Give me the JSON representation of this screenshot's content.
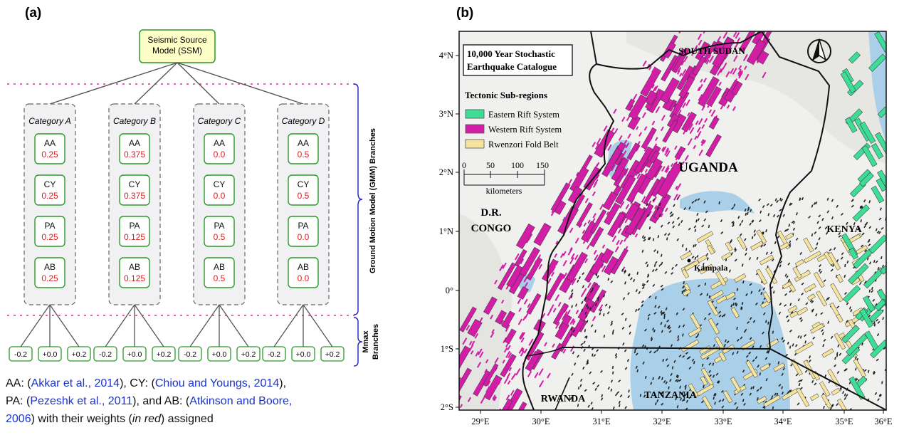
{
  "panel_a": {
    "label": "(a)",
    "root": "Seismic Source\nModel (SSM)",
    "gmm_label": "Ground Motion Model  (GMM) Branches",
    "mmax_label_1": "Mmax",
    "mmax_label_2": "Branches",
    "categories": [
      {
        "title": "Category A",
        "models": [
          {
            "code": "AA",
            "w": "0.25"
          },
          {
            "code": "CY",
            "w": "0.25"
          },
          {
            "code": "PA",
            "w": "0.25"
          },
          {
            "code": "AB",
            "w": "0.25"
          }
        ]
      },
      {
        "title": "Category B",
        "models": [
          {
            "code": "AA",
            "w": "0.375"
          },
          {
            "code": "CY",
            "w": "0.375"
          },
          {
            "code": "PA",
            "w": "0.125"
          },
          {
            "code": "AB",
            "w": "0.125"
          }
        ]
      },
      {
        "title": "Category C",
        "models": [
          {
            "code": "AA",
            "w": "0.0"
          },
          {
            "code": "CY",
            "w": "0.0"
          },
          {
            "code": "PA",
            "w": "0.5"
          },
          {
            "code": "AB",
            "w": "0.5"
          }
        ]
      },
      {
        "title": "Category D",
        "models": [
          {
            "code": "AA",
            "w": "0.5"
          },
          {
            "code": "CY",
            "w": "0.5"
          },
          {
            "code": "PA",
            "w": "0.0"
          },
          {
            "code": "AB",
            "w": "0.0"
          }
        ]
      }
    ],
    "mmax_values": [
      "-0.2",
      "+0.0",
      "+0.2"
    ],
    "caption": {
      "p1": "AA: (",
      "r1": "Akkar et al., 2014",
      "p2": "), CY: (",
      "r2": "Chiou and Youngs, 2014",
      "p3": "),",
      "p4": "PA: (",
      "r3": "Pezeshk et al., 2011",
      "p5": "), and AB: (",
      "r4": "Atkinson and Boore,",
      "r5": "2006",
      "p6": ") with their weights (",
      "em": "in red",
      "p7": ") assigned"
    }
  },
  "panel_b": {
    "label": "(b)",
    "title_line1": "10,000 Year Stochastic",
    "title_line2": "Earthquake Catalogue",
    "legend_title": "Tectonic Sub-regions",
    "legend": [
      {
        "label": "Eastern Rift System",
        "color": "#3ddc97"
      },
      {
        "label": "Western Rift System",
        "color": "#d21da6"
      },
      {
        "label": "Rwenzori Fold Belt",
        "color": "#f5e3a0"
      }
    ],
    "scale_ticks": [
      "0",
      "50",
      "100",
      "150"
    ],
    "scale_unit": "kilometers",
    "countries": [
      "SOUTH SUDAN",
      "UGANDA",
      "D.R.",
      "CONGO",
      "KENYA",
      "RWANDA",
      "TANZANIA"
    ],
    "city": "Kampala",
    "lat_labels": [
      "4°N",
      "3°N",
      "2°N",
      "1°N",
      "0°",
      "1°S",
      "2°S"
    ],
    "lon_labels": [
      "29°E",
      "30°E",
      "31°E",
      "32°E",
      "33°E",
      "34°E",
      "35°E",
      "36°E"
    ],
    "colors": {
      "lake": "#a9d0e8",
      "land": "#f2f2f0",
      "border": "#111111"
    }
  }
}
